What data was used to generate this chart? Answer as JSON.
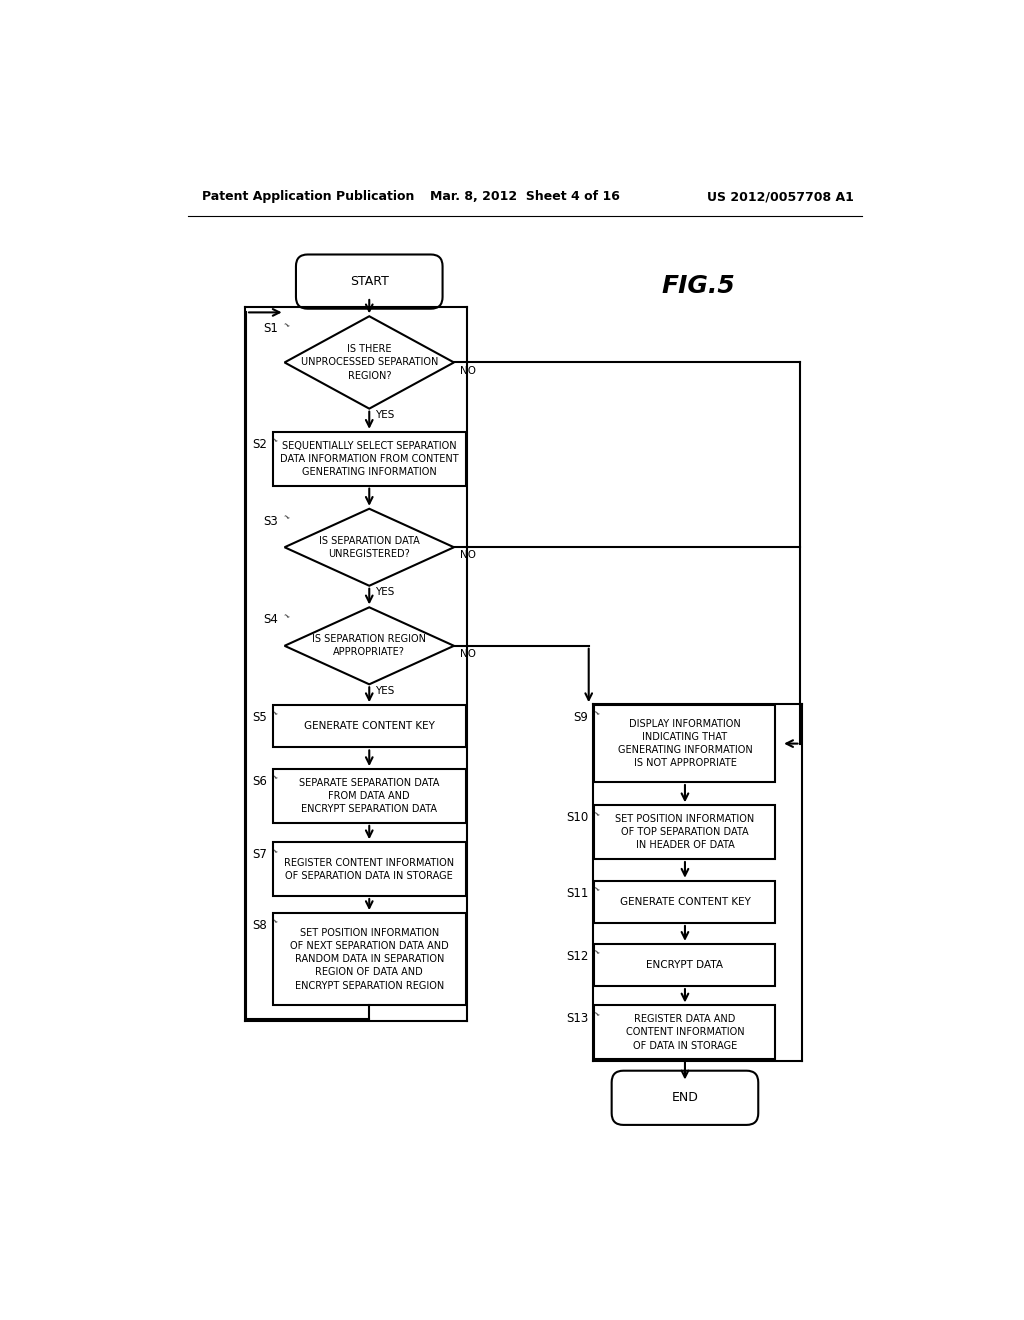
{
  "header_left": "Patent Application Publication",
  "header_center": "Mar. 8, 2012  Sheet 4 of 16",
  "header_right": "US 2012/0057708 A1",
  "fig_label": "FIG.5",
  "bg_color": "#ffffff",
  "line_color": "#000000",
  "text_color": "#000000",
  "start_label": "START",
  "end_label": "END",
  "s1_label": "S1",
  "s1_text": "IS THERE\nUNPROCESSED SEPARATION\nREGION?",
  "s2_label": "S2",
  "s2_text": "SEQUENTIALLY SELECT SEPARATION\nDATA INFORMATION FROM CONTENT\nGENERATING INFORMATION",
  "s3_label": "S3",
  "s3_text": "IS SEPARATION DATA\nUNREGISTERED?",
  "s4_label": "S4",
  "s4_text": "IS SEPARATION REGION\nAPPROPRIATE?",
  "s5_label": "S5",
  "s5_text": "GENERATE CONTENT KEY",
  "s6_label": "S6",
  "s6_text": "SEPARATE SEPARATION DATA\nFROM DATA AND\nENCRYPT SEPARATION DATA",
  "s7_label": "S7",
  "s7_text": "REGISTER CONTENT INFORMATION\nOF SEPARATION DATA IN STORAGE",
  "s8_label": "S8",
  "s8_text": "SET POSITION INFORMATION\nOF NEXT SEPARATION DATA AND\nRANDOM DATA IN SEPARATION\nREGION OF DATA AND\nENCRYPT SEPARATION REGION",
  "s9_label": "S9",
  "s9_text": "DISPLAY INFORMATION\nINDICATING THAT\nGENERATING INFORMATION\nIS NOT APPROPRIATE",
  "s10_label": "S10",
  "s10_text": "SET POSITION INFORMATION\nOF TOP SEPARATION DATA\nIN HEADER OF DATA",
  "s11_label": "S11",
  "s11_text": "GENERATE CONTENT KEY",
  "s12_label": "S12",
  "s12_text": "ENCRYPT DATA",
  "s13_label": "S13",
  "s13_text": "REGISTER DATA AND\nCONTENT INFORMATION\nOF DATA IN STORAGE",
  "yes_label": "YES",
  "no_label": "NO"
}
